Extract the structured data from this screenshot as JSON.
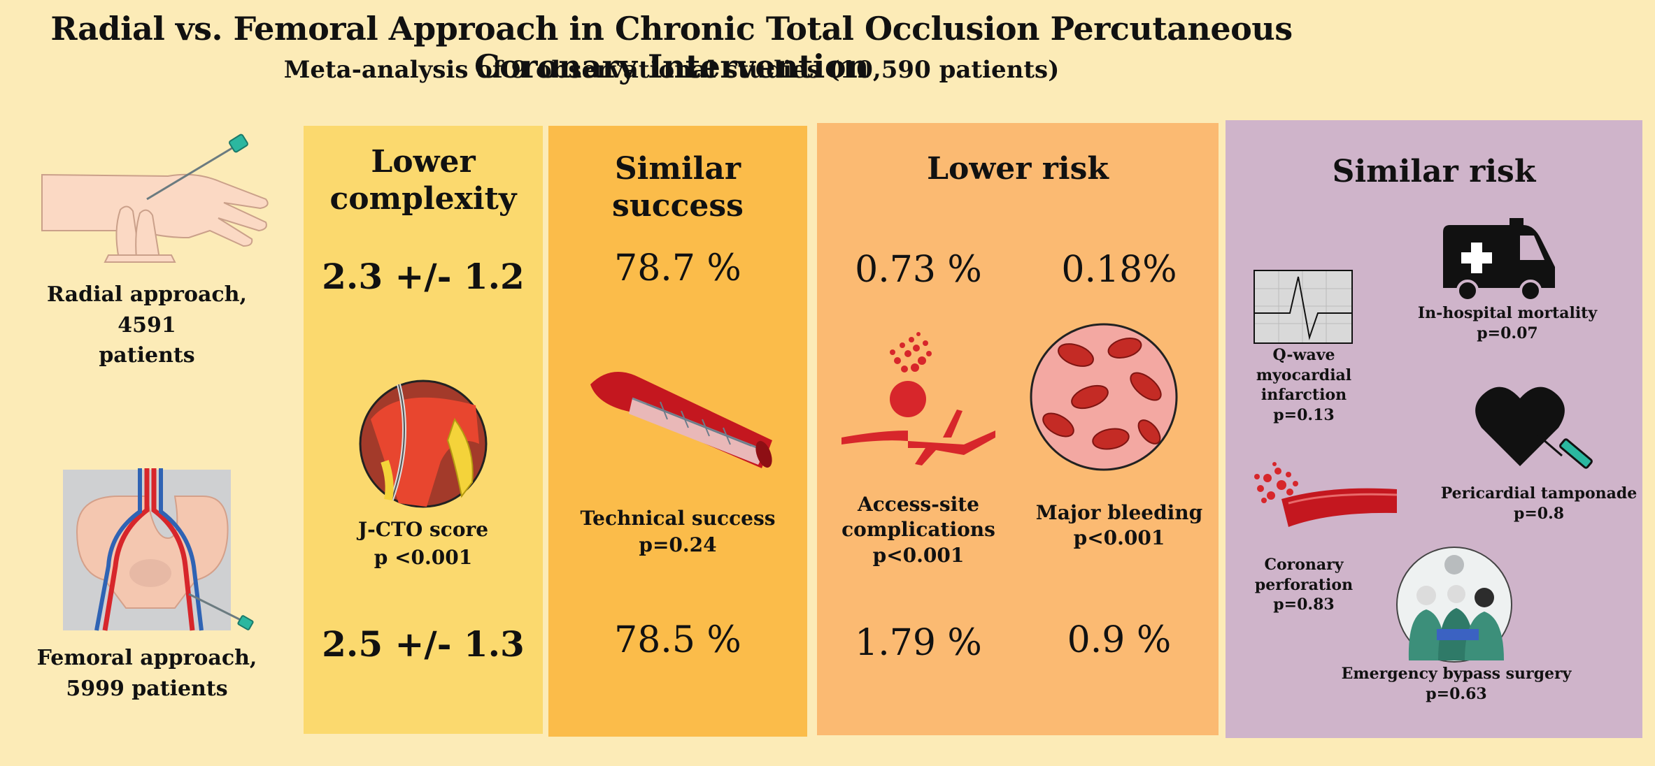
{
  "title": "Radial vs. Femoral Approach in Chronic Total Occlusion Percutaneous Coronary Intervention",
  "subtitle": "Meta-analysis of 9 observational studies (10,590 patients)",
  "left": {
    "radial_line1": "Radial approach, 4591",
    "radial_line2": "patients",
    "femoral_line1": "Femoral approach,",
    "femoral_line2": "5999 patients"
  },
  "panels": {
    "complexity": {
      "title_line1": "Lower",
      "title_line2": "complexity",
      "radial_value": "2.3 +/- 1.2",
      "femoral_value": "2.5 +/- 1.3",
      "label": "J-CTO score",
      "p": "p <0.001"
    },
    "success": {
      "title_line1": "Similar",
      "title_line2": "success",
      "radial_value": "78.7 %",
      "femoral_value": "78.5 %",
      "label": "Technical success",
      "p": "p=0.24"
    },
    "lower_risk": {
      "title": "Lower risk",
      "access": {
        "radial_value": "0.73 %",
        "femoral_value": "1.79 %",
        "label_line1": "Access-site",
        "label_line2": "complications",
        "p": "p<0.001"
      },
      "bleeding": {
        "radial_value": "0.18%",
        "femoral_value": "0.9 %",
        "label": "Major bleeding",
        "p": "p<0.001"
      }
    },
    "similar_risk": {
      "title": "Similar risk",
      "qwave": {
        "line1": "Q-wave myocardial",
        "line2": "infarction",
        "p": "p=0.13"
      },
      "mortality": {
        "label": "In-hospital mortality",
        "p": "p=0.07"
      },
      "tamponade": {
        "label": "Pericardial tamponade",
        "p": "p=0.8"
      },
      "perforation": {
        "line1": "Coronary",
        "line2": "perforation",
        "p": "p=0.83"
      },
      "bypass": {
        "label": "Emergency bypass surgery",
        "p": "p=0.63"
      }
    }
  },
  "colors": {
    "background": "#fcebb7",
    "panel_complexity": "#fbd96e",
    "panel_success": "#fbbc4a",
    "panel_lower_risk": "#fbba72",
    "panel_similar_risk": "#cfb4ca",
    "vessel_red": "#d7262b"
  }
}
